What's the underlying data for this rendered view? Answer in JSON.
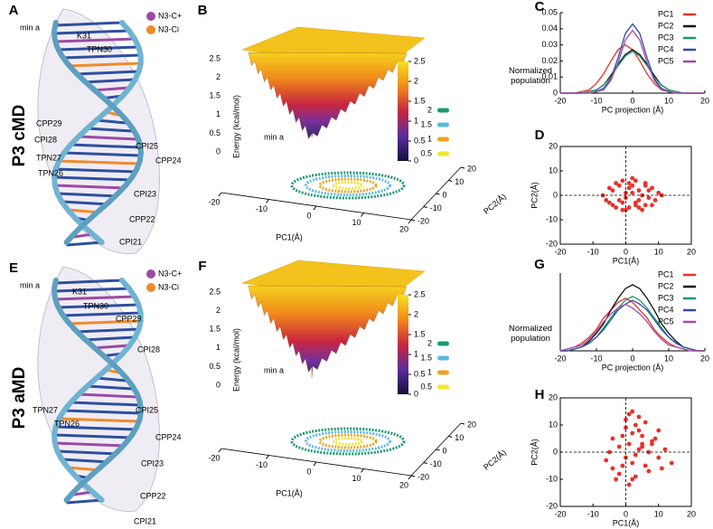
{
  "row_labels": [
    "P3 cMD",
    "P3 aMD"
  ],
  "structures": [
    {
      "label": "A",
      "title": "min a",
      "legend": [
        {
          "name": "N3-C+",
          "color": "#9b4aa6"
        },
        {
          "name": "N3-Ci",
          "color": "#f08a2a"
        }
      ],
      "annotations": [
        {
          "text": "K31",
          "color": "#000000"
        },
        {
          "text": "TPN30",
          "color": "#000000"
        },
        {
          "text": "CPP29",
          "color": "#9b4aa6"
        },
        {
          "text": "CPI28",
          "color": "#f08a2a"
        },
        {
          "text": "TPN27",
          "color": "#000000"
        },
        {
          "text": "TPN26",
          "color": "#000000"
        },
        {
          "text": "CPI25",
          "color": "#f08a2a"
        },
        {
          "text": "CPP24",
          "color": "#9b4aa6"
        },
        {
          "text": "CPI23",
          "color": "#f08a2a"
        },
        {
          "text": "CPP22",
          "color": "#9b4aa6"
        },
        {
          "text": "CPI21",
          "color": "#f08a2a"
        }
      ]
    },
    {
      "label": "E",
      "title": "min a",
      "legend": [
        {
          "name": "N3-C+",
          "color": "#9b4aa6"
        },
        {
          "name": "N3-Ci",
          "color": "#f08a2a"
        }
      ],
      "annotations": [
        {
          "text": "K31",
          "color": "#000000"
        },
        {
          "text": "TPN30",
          "color": "#000000"
        },
        {
          "text": "CPP29",
          "color": "#9b4aa6"
        },
        {
          "text": "CPI28",
          "color": "#f08a2a"
        },
        {
          "text": "TPN27",
          "color": "#000000"
        },
        {
          "text": "TPN26",
          "color": "#000000"
        },
        {
          "text": "CPI25",
          "color": "#f08a2a"
        },
        {
          "text": "CPP24",
          "color": "#9b4aa6"
        },
        {
          "text": "CPI23",
          "color": "#f08a2a"
        },
        {
          "text": "CPP22",
          "color": "#9b4aa6"
        },
        {
          "text": "CPI21",
          "color": "#f08a2a"
        }
      ]
    }
  ],
  "surfaces": [
    {
      "label": "B",
      "zlabel": "Energy (kcal/mol)",
      "zticks": [
        0,
        0.5,
        1,
        1.5,
        2,
        2.5
      ],
      "annotation": "min a",
      "colorbar_ticks": [
        0,
        0.5,
        1,
        1.5,
        2,
        2.5
      ],
      "contours": [
        {
          "level": 2,
          "color": "#1a9a6c"
        },
        {
          "level": 1.5,
          "color": "#5bb8e6"
        },
        {
          "level": 1,
          "color": "#f0a020"
        },
        {
          "level": 0.5,
          "color": "#f2e62a"
        }
      ],
      "xlabel": "PC1(Å)",
      "ylabel": "PC2(Å)",
      "xticks": [
        -20,
        -10,
        0,
        10,
        20
      ],
      "yticks": [
        -20,
        -10,
        0,
        10,
        20
      ]
    },
    {
      "label": "F",
      "zlabel": "Energy (kcal/mol)",
      "zticks": [
        0,
        0.5,
        1,
        1.5,
        2,
        2.5
      ],
      "annotation": "min a",
      "colorbar_ticks": [
        0,
        0.5,
        1,
        1.5,
        2,
        2.5
      ],
      "contours": [
        {
          "level": 2,
          "color": "#1a9a6c"
        },
        {
          "level": 1.5,
          "color": "#5bb8e6"
        },
        {
          "level": 1,
          "color": "#f0a020"
        },
        {
          "level": 0.5,
          "color": "#f2e62a"
        }
      ],
      "xlabel": "PC1(Å)",
      "ylabel": "PC2(Å)",
      "xticks": [
        -20,
        -10,
        0,
        10,
        20
      ],
      "yticks": [
        -20,
        -10,
        0,
        10,
        20
      ]
    }
  ],
  "chart_data": [
    {
      "type": "line",
      "label": "C",
      "xlabel": "PC projection (Å)",
      "ylabel": "Normalized population",
      "x": [
        -20,
        -18,
        -16,
        -14,
        -12,
        -10,
        -8,
        -6,
        -4,
        -2,
        0,
        2,
        4,
        6,
        8,
        10,
        12,
        14,
        16,
        18,
        20
      ],
      "xlim": [
        -20,
        20
      ],
      "xticks": [
        -20,
        -10,
        0,
        10,
        20
      ],
      "ylim": [
        0,
        0.05
      ],
      "yticks": [
        0,
        0.01,
        0.02,
        0.03,
        0.04,
        0.05
      ],
      "series": [
        {
          "name": "PC1",
          "color": "#e8322a",
          "values": [
            0,
            0,
            0,
            0.001,
            0.002,
            0.006,
            0.012,
            0.02,
            0.027,
            0.03,
            0.027,
            0.02,
            0.012,
            0.006,
            0.002,
            0.001,
            0,
            0,
            0,
            0,
            0
          ]
        },
        {
          "name": "PC2",
          "color": "#111111",
          "values": [
            0,
            0,
            0,
            0,
            0.001,
            0.002,
            0.005,
            0.011,
            0.018,
            0.024,
            0.027,
            0.024,
            0.018,
            0.011,
            0.005,
            0.002,
            0.001,
            0,
            0,
            0,
            0
          ]
        },
        {
          "name": "PC3",
          "color": "#1a9a6c",
          "values": [
            0,
            0,
            0,
            0,
            0.001,
            0.002,
            0.005,
            0.01,
            0.017,
            0.023,
            0.026,
            0.023,
            0.017,
            0.01,
            0.005,
            0.002,
            0.001,
            0,
            0,
            0,
            0
          ]
        },
        {
          "name": "PC4",
          "color": "#2b4fa0",
          "values": [
            0,
            0,
            0,
            0,
            0,
            0.001,
            0.003,
            0.009,
            0.022,
            0.037,
            0.043,
            0.037,
            0.022,
            0.009,
            0.003,
            0.001,
            0,
            0,
            0,
            0,
            0
          ]
        },
        {
          "name": "PC5",
          "color": "#a34aa6",
          "values": [
            0,
            0,
            0,
            0,
            0,
            0.001,
            0.002,
            0.008,
            0.019,
            0.033,
            0.039,
            0.033,
            0.019,
            0.008,
            0.002,
            0.001,
            0,
            0,
            0,
            0,
            0
          ]
        }
      ]
    },
    {
      "type": "scatter",
      "label": "D",
      "xlabel": "PC1(Å)",
      "ylabel": "PC2(Å)",
      "color": "#e8322a",
      "zero_lines": true,
      "xlim": [
        -20,
        20
      ],
      "xticks": [
        -20,
        -10,
        0,
        10,
        20
      ],
      "ylim": [
        -20,
        20
      ],
      "yticks": [
        -20,
        -10,
        0,
        10,
        20
      ],
      "x": [
        -7,
        -5,
        -4,
        -3,
        -2,
        -1,
        0,
        1,
        2,
        3,
        4,
        5,
        6,
        7,
        8,
        10,
        -6,
        -3,
        0,
        3,
        6,
        9,
        -4,
        -1,
        2,
        5,
        8,
        11,
        -2,
        1,
        4,
        7,
        0,
        2,
        -5,
        3,
        6,
        -1,
        1,
        4
      ],
      "y": [
        0,
        3,
        -4,
        5,
        -2,
        6,
        1,
        -5,
        4,
        -3,
        2,
        -6,
        5,
        -1,
        3,
        1,
        -2,
        -5,
        -6,
        6,
        -4,
        -2,
        2,
        -3,
        7,
        0,
        -4,
        0,
        4,
        3,
        -2,
        2,
        -1,
        1,
        -3,
        -4,
        4,
        -6,
        5,
        -5
      ]
    },
    {
      "type": "line",
      "label": "G",
      "xlabel": "PC projection (Å)",
      "ylabel": "Normalized population",
      "x": [
        -20,
        -18,
        -16,
        -14,
        -12,
        -10,
        -8,
        -6,
        -4,
        -2,
        0,
        2,
        4,
        6,
        8,
        10,
        12,
        14,
        16,
        18,
        20
      ],
      "xlim": [
        -20,
        20
      ],
      "xticks": [
        -20,
        -10,
        0,
        10,
        20
      ],
      "ylim": [
        0,
        0.04
      ],
      "series": [
        {
          "name": "PC1",
          "color": "#e8322a",
          "values": [
            0,
            0.001,
            0.002,
            0.004,
            0.007,
            0.011,
            0.017,
            0.021,
            0.025,
            0.027,
            0.025,
            0.021,
            0.017,
            0.011,
            0.007,
            0.004,
            0.002,
            0.001,
            0,
            0,
            0
          ]
        },
        {
          "name": "PC2",
          "color": "#111111",
          "values": [
            0,
            0,
            0.001,
            0.002,
            0.005,
            0.009,
            0.014,
            0.021,
            0.027,
            0.032,
            0.034,
            0.032,
            0.027,
            0.021,
            0.014,
            0.009,
            0.005,
            0.002,
            0.001,
            0,
            0
          ]
        },
        {
          "name": "PC3",
          "color": "#1a9a6c",
          "values": [
            0,
            0,
            0.001,
            0.002,
            0.004,
            0.007,
            0.012,
            0.017,
            0.022,
            0.026,
            0.028,
            0.026,
            0.022,
            0.017,
            0.012,
            0.007,
            0.004,
            0.002,
            0.001,
            0,
            0
          ]
        },
        {
          "name": "PC4",
          "color": "#2b4fa0",
          "values": [
            0,
            0,
            0.001,
            0.002,
            0.004,
            0.007,
            0.011,
            0.016,
            0.021,
            0.024,
            0.026,
            0.024,
            0.021,
            0.016,
            0.011,
            0.007,
            0.004,
            0.002,
            0.001,
            0,
            0
          ]
        },
        {
          "name": "PC5",
          "color": "#a34aa6",
          "values": [
            0,
            0.001,
            0.002,
            0.003,
            0.006,
            0.01,
            0.015,
            0.019,
            0.022,
            0.024,
            0.022,
            0.019,
            0.015,
            0.01,
            0.006,
            0.003,
            0.002,
            0.001,
            0,
            0,
            0
          ]
        }
      ]
    },
    {
      "type": "scatter",
      "label": "H",
      "xlabel": "PC1(Å)",
      "ylabel": "PC2(Å)",
      "color": "#e8322a",
      "zero_lines": true,
      "xlim": [
        -20,
        20
      ],
      "xticks": [
        -20,
        -10,
        0,
        10,
        20
      ],
      "ylim": [
        -20,
        20
      ],
      "yticks": [
        -20,
        -10,
        0,
        10,
        20
      ],
      "x": [
        -6,
        -4,
        -2,
        0,
        2,
        4,
        6,
        8,
        10,
        12,
        14,
        -5,
        -3,
        -1,
        1,
        3,
        5,
        7,
        9,
        11,
        0,
        2,
        4,
        1,
        3,
        -2,
        5,
        7,
        -4,
        6,
        1,
        2,
        0,
        3,
        8,
        -1,
        4,
        10,
        2,
        5
      ],
      "y": [
        -3,
        5,
        -8,
        12,
        15,
        8,
        -5,
        3,
        -2,
        1,
        -4,
        0,
        -10,
        6,
        -12,
        10,
        2,
        -7,
        5,
        -6,
        9,
        -4,
        13,
        3,
        -9,
        2,
        6,
        0,
        -6,
        11,
        14,
        7,
        -2,
        -1,
        4,
        -5,
        1,
        8,
        -10,
        3
      ]
    }
  ]
}
